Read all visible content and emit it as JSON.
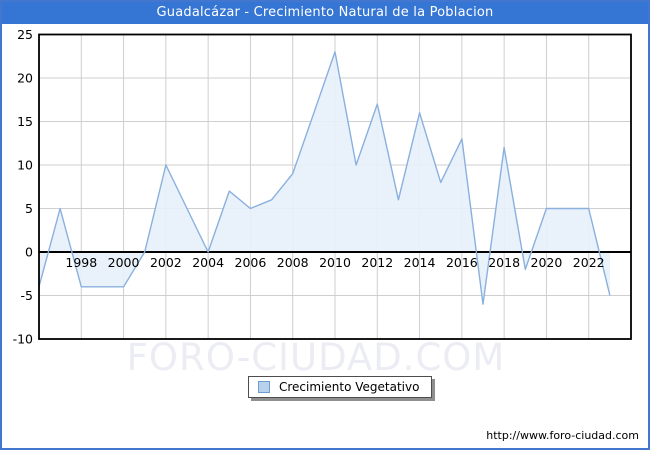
{
  "window": {
    "title": "Guadalcázar - Crecimiento Natural de la Poblacion"
  },
  "legend": {
    "label": "Crecimiento Vegetativo"
  },
  "watermark": "FORO-CIUDAD.COM",
  "footer": {
    "url": "http://www.foro-ciudad.com"
  },
  "colors": {
    "titlebar_bg": "#3575d4",
    "frame_border": "#4377cf",
    "line": "#8ab0de",
    "area_fill": "#e7f0fa",
    "gridline": "#cfcfcf",
    "axis": "#000000",
    "watermark": "#ecedf4",
    "legend_swatch_fill": "#b8d2ec",
    "legend_swatch_border": "#6d9dd1"
  },
  "chart_data": {
    "type": "area",
    "title": "Guadalcázar - Crecimiento Natural de la Poblacion",
    "xlabel": "",
    "ylabel": "",
    "xlim": [
      1996,
      2024
    ],
    "ylim": [
      -10,
      25
    ],
    "xticks": [
      1998,
      2000,
      2002,
      2004,
      2006,
      2008,
      2010,
      2012,
      2014,
      2016,
      2018,
      2020,
      2022
    ],
    "yticks": [
      25,
      20,
      15,
      10,
      5,
      0,
      -5,
      -10
    ],
    "grid": true,
    "legend_position": "bottom-center",
    "series": [
      {
        "name": "Crecimiento Vegetativo",
        "x": [
          1996,
          1997,
          1998,
          1999,
          2000,
          2001,
          2002,
          2003,
          2004,
          2005,
          2006,
          2007,
          2008,
          2009,
          2010,
          2011,
          2012,
          2013,
          2014,
          2015,
          2016,
          2017,
          2018,
          2019,
          2020,
          2021,
          2022,
          2023
        ],
        "values": [
          -4,
          5,
          -4,
          -4,
          -4,
          0,
          10,
          5,
          0,
          7,
          5,
          6,
          9,
          16,
          23,
          10,
          17,
          6,
          16,
          8,
          13,
          -6,
          12,
          -2,
          5,
          5,
          5,
          -5
        ]
      }
    ]
  }
}
